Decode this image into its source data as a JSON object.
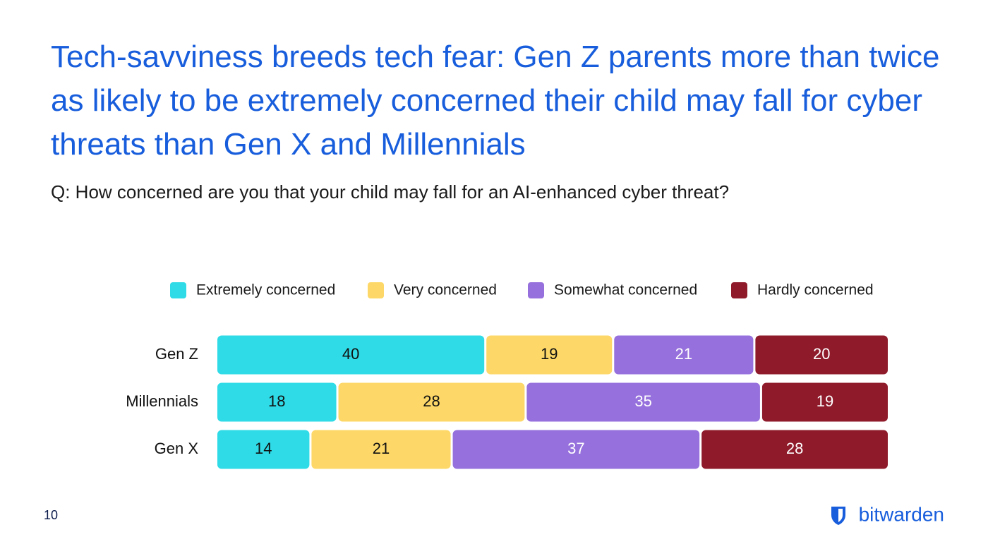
{
  "chart_data": {
    "type": "stacked-bar",
    "title": "Tech-savviness breeds tech fear: Gen Z parents more than twice as likely to be extremely concerned their child may fall for cyber threats than Gen X and Millennials",
    "subtitle": "Q: How concerned are you that your child may fall for an AI-enhanced cyber threat?",
    "categories": [
      "Gen Z",
      "Millennials",
      "Gen X"
    ],
    "series": [
      {
        "name": "Extremely concerned",
        "color": "#2edbe6",
        "label_color": "#111111",
        "values": [
          40,
          18,
          14
        ]
      },
      {
        "name": "Very concerned",
        "color": "#fdd868",
        "label_color": "#111111",
        "values": [
          19,
          28,
          21
        ]
      },
      {
        "name": "Somewhat concerned",
        "color": "#9670dc",
        "label_color": "#ffffff",
        "values": [
          21,
          35,
          37
        ]
      },
      {
        "name": "Hardly concerned",
        "color": "#8e1a2a",
        "label_color": "#ffffff",
        "values": [
          20,
          19,
          28
        ]
      }
    ]
  },
  "footer": {
    "page_number": "10",
    "brand": "bitwarden"
  }
}
